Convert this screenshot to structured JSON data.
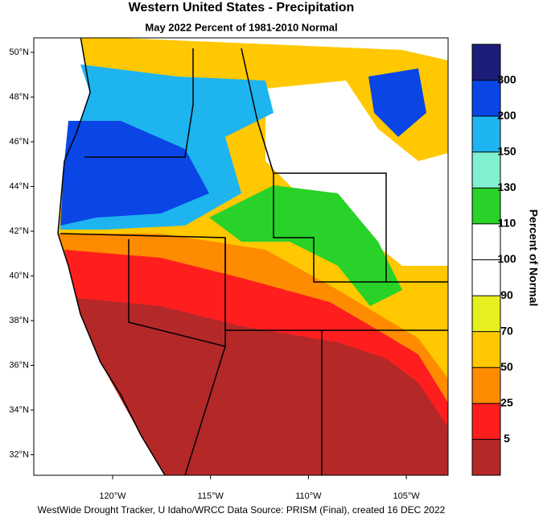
{
  "title": "Western United States - Precipitation",
  "subtitle": "May 2022  Percent of 1981-2010 Normal",
  "latitude_labels": [
    "50°N",
    "48°N",
    "46°N",
    "44°N",
    "42°N",
    "40°N",
    "38°N",
    "36°N",
    "34°N",
    "32°N"
  ],
  "longitude_labels": [
    "120°W",
    "115°W",
    "110°W",
    "105°W"
  ],
  "legend": {
    "title": "Percent of Normal",
    "ticks": [
      300,
      200,
      150,
      130,
      110,
      100,
      90,
      70,
      50,
      25,
      5
    ],
    "colors": [
      "#1c1c7a",
      "#0a46e6",
      "#1eb4f0",
      "#80f0d0",
      "#28d228",
      "#ffffff",
      "#ffffff",
      "#e6f01e",
      "#ffc800",
      "#ff8c00",
      "#ff1e1e",
      "#b42828"
    ]
  },
  "footer": "WestWide Drought Tracker, U Idaho/WRCC Data Source: PRISM (Final), created 16 DEC 2022"
}
